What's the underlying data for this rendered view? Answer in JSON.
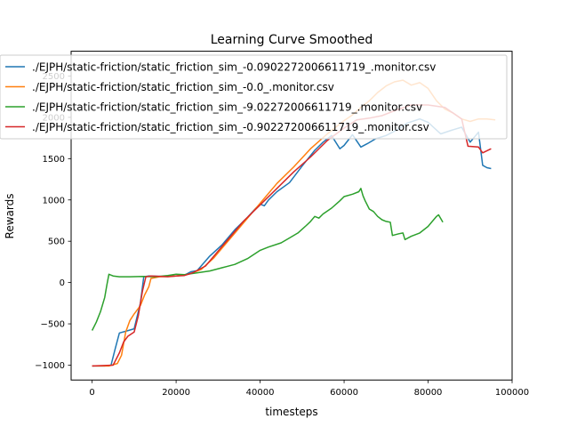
{
  "chart_data": {
    "type": "line",
    "title": "Learning Curve Smoothed",
    "xlabel": "timesteps",
    "ylabel": "Rewards",
    "xlim": [
      -5000,
      100000
    ],
    "ylim": [
      -1180,
      2800
    ],
    "xticks": [
      0,
      20000,
      40000,
      60000,
      80000,
      100000
    ],
    "xtick_labels": [
      "0",
      "20000",
      "40000",
      "60000",
      "80000",
      "100000"
    ],
    "yticks": [
      -1000,
      -500,
      0,
      500,
      1000,
      1500,
      2000,
      2500
    ],
    "ytick_labels": [
      "−1000",
      "−500",
      "0",
      "500",
      "1000",
      "1500",
      "2000",
      "2500"
    ],
    "grid": false,
    "legend_position": "top-left",
    "series": [
      {
        "name": "./EJPH/static-friction/static_friction_sim_-0.0902272006611719_.monitor.csv",
        "color": "#1f77b4",
        "points": [
          [
            0,
            -1010
          ],
          [
            3000,
            -1010
          ],
          [
            4500,
            -1000
          ],
          [
            5500,
            -800
          ],
          [
            6500,
            -610
          ],
          [
            8000,
            -590
          ],
          [
            10000,
            -560
          ],
          [
            11500,
            -250
          ],
          [
            12300,
            70
          ],
          [
            13500,
            80
          ],
          [
            17000,
            75
          ],
          [
            20000,
            80
          ],
          [
            22000,
            90
          ],
          [
            23500,
            130
          ],
          [
            25000,
            145
          ],
          [
            28000,
            320
          ],
          [
            31000,
            460
          ],
          [
            34000,
            640
          ],
          [
            37000,
            790
          ],
          [
            39000,
            900
          ],
          [
            40000,
            950
          ],
          [
            41000,
            930
          ],
          [
            42000,
            1000
          ],
          [
            44000,
            1100
          ],
          [
            47000,
            1210
          ],
          [
            50000,
            1410
          ],
          [
            53000,
            1600
          ],
          [
            55000,
            1700
          ],
          [
            57000,
            1780
          ],
          [
            59000,
            1620
          ],
          [
            60000,
            1660
          ],
          [
            62000,
            1790
          ],
          [
            64000,
            1640
          ],
          [
            65500,
            1680
          ],
          [
            67500,
            1740
          ],
          [
            70000,
            1780
          ],
          [
            73000,
            1860
          ],
          [
            75000,
            1930
          ],
          [
            78000,
            1980
          ],
          [
            80000,
            1940
          ],
          [
            83000,
            1800
          ],
          [
            86000,
            1850
          ],
          [
            88000,
            1880
          ],
          [
            90000,
            1700
          ],
          [
            92000,
            1820
          ],
          [
            93000,
            1420
          ],
          [
            94000,
            1390
          ],
          [
            95000,
            1380
          ]
        ]
      },
      {
        "name": "./EJPH/static-friction/static_friction_sim_-0.0_.monitor.csv",
        "color": "#ff7f0e",
        "points": [
          [
            0,
            -1010
          ],
          [
            4000,
            -1010
          ],
          [
            6000,
            -980
          ],
          [
            7000,
            -880
          ],
          [
            8000,
            -600
          ],
          [
            9000,
            -460
          ],
          [
            10000,
            -380
          ],
          [
            11500,
            -280
          ],
          [
            12500,
            -150
          ],
          [
            13500,
            -50
          ],
          [
            14000,
            50
          ],
          [
            16000,
            70
          ],
          [
            20000,
            80
          ],
          [
            23000,
            100
          ],
          [
            26000,
            160
          ],
          [
            29000,
            300
          ],
          [
            32000,
            480
          ],
          [
            36000,
            720
          ],
          [
            40000,
            960
          ],
          [
            44000,
            1200
          ],
          [
            48000,
            1400
          ],
          [
            52000,
            1620
          ],
          [
            56000,
            1800
          ],
          [
            58000,
            1880
          ],
          [
            60000,
            1960
          ],
          [
            62000,
            2030
          ],
          [
            64000,
            2120
          ],
          [
            66000,
            2200
          ],
          [
            68000,
            2300
          ],
          [
            70000,
            2380
          ],
          [
            72000,
            2430
          ],
          [
            74000,
            2450
          ],
          [
            76000,
            2390
          ],
          [
            78000,
            2420
          ],
          [
            80000,
            2350
          ],
          [
            82000,
            2200
          ],
          [
            84000,
            2100
          ],
          [
            86000,
            2050
          ],
          [
            88000,
            1980
          ],
          [
            90000,
            1950
          ],
          [
            92000,
            1980
          ],
          [
            94000,
            1980
          ],
          [
            96000,
            1970
          ]
        ]
      },
      {
        "name": "./EJPH/static-friction/static_friction_sim_-9.02272006611719_.monitor.csv",
        "color": "#2ca02c",
        "points": [
          [
            0,
            -580
          ],
          [
            1000,
            -480
          ],
          [
            2000,
            -350
          ],
          [
            3000,
            -180
          ],
          [
            3500,
            -30
          ],
          [
            4000,
            100
          ],
          [
            5000,
            80
          ],
          [
            6500,
            70
          ],
          [
            9000,
            70
          ],
          [
            12000,
            75
          ],
          [
            15000,
            70
          ],
          [
            18000,
            85
          ],
          [
            20000,
            100
          ],
          [
            22000,
            95
          ],
          [
            24000,
            110
          ],
          [
            28000,
            140
          ],
          [
            31000,
            180
          ],
          [
            34000,
            220
          ],
          [
            37000,
            290
          ],
          [
            40000,
            390
          ],
          [
            42000,
            430
          ],
          [
            45000,
            480
          ],
          [
            47000,
            540
          ],
          [
            49000,
            600
          ],
          [
            51000,
            690
          ],
          [
            52000,
            740
          ],
          [
            53000,
            800
          ],
          [
            54000,
            780
          ],
          [
            55000,
            830
          ],
          [
            57000,
            900
          ],
          [
            59000,
            990
          ],
          [
            60000,
            1040
          ],
          [
            62000,
            1070
          ],
          [
            63500,
            1100
          ],
          [
            64000,
            1140
          ],
          [
            64500,
            1050
          ],
          [
            65000,
            990
          ],
          [
            66000,
            890
          ],
          [
            67000,
            860
          ],
          [
            68000,
            800
          ],
          [
            69000,
            760
          ],
          [
            70000,
            740
          ],
          [
            71000,
            730
          ],
          [
            71500,
            570
          ],
          [
            73000,
            590
          ],
          [
            74000,
            600
          ],
          [
            74500,
            520
          ],
          [
            76000,
            560
          ],
          [
            78000,
            600
          ],
          [
            80000,
            680
          ],
          [
            81000,
            740
          ],
          [
            82000,
            800
          ],
          [
            82500,
            820
          ],
          [
            83500,
            730
          ]
        ]
      },
      {
        "name": "./EJPH/static-friction/static_friction_sim_-0.902272006611719_.monitor.csv",
        "color": "#d62728",
        "points": [
          [
            0,
            -1010
          ],
          [
            5000,
            -1000
          ],
          [
            6500,
            -850
          ],
          [
            7500,
            -720
          ],
          [
            8500,
            -650
          ],
          [
            10000,
            -600
          ],
          [
            11000,
            -400
          ],
          [
            12000,
            -100
          ],
          [
            12800,
            70
          ],
          [
            14000,
            80
          ],
          [
            18000,
            70
          ],
          [
            20000,
            80
          ],
          [
            22000,
            85
          ],
          [
            24000,
            120
          ],
          [
            27000,
            200
          ],
          [
            30000,
            380
          ],
          [
            33000,
            560
          ],
          [
            36000,
            740
          ],
          [
            40000,
            940
          ],
          [
            44000,
            1140
          ],
          [
            48000,
            1340
          ],
          [
            52000,
            1520
          ],
          [
            56000,
            1720
          ],
          [
            60000,
            1870
          ],
          [
            63000,
            1970
          ],
          [
            66000,
            1990
          ],
          [
            69000,
            2020
          ],
          [
            72000,
            2080
          ],
          [
            76000,
            2150
          ],
          [
            80000,
            2150
          ],
          [
            84000,
            2120
          ],
          [
            88000,
            1980
          ],
          [
            89500,
            1650
          ],
          [
            92000,
            1640
          ],
          [
            93000,
            1570
          ],
          [
            95000,
            1620
          ]
        ]
      }
    ]
  }
}
